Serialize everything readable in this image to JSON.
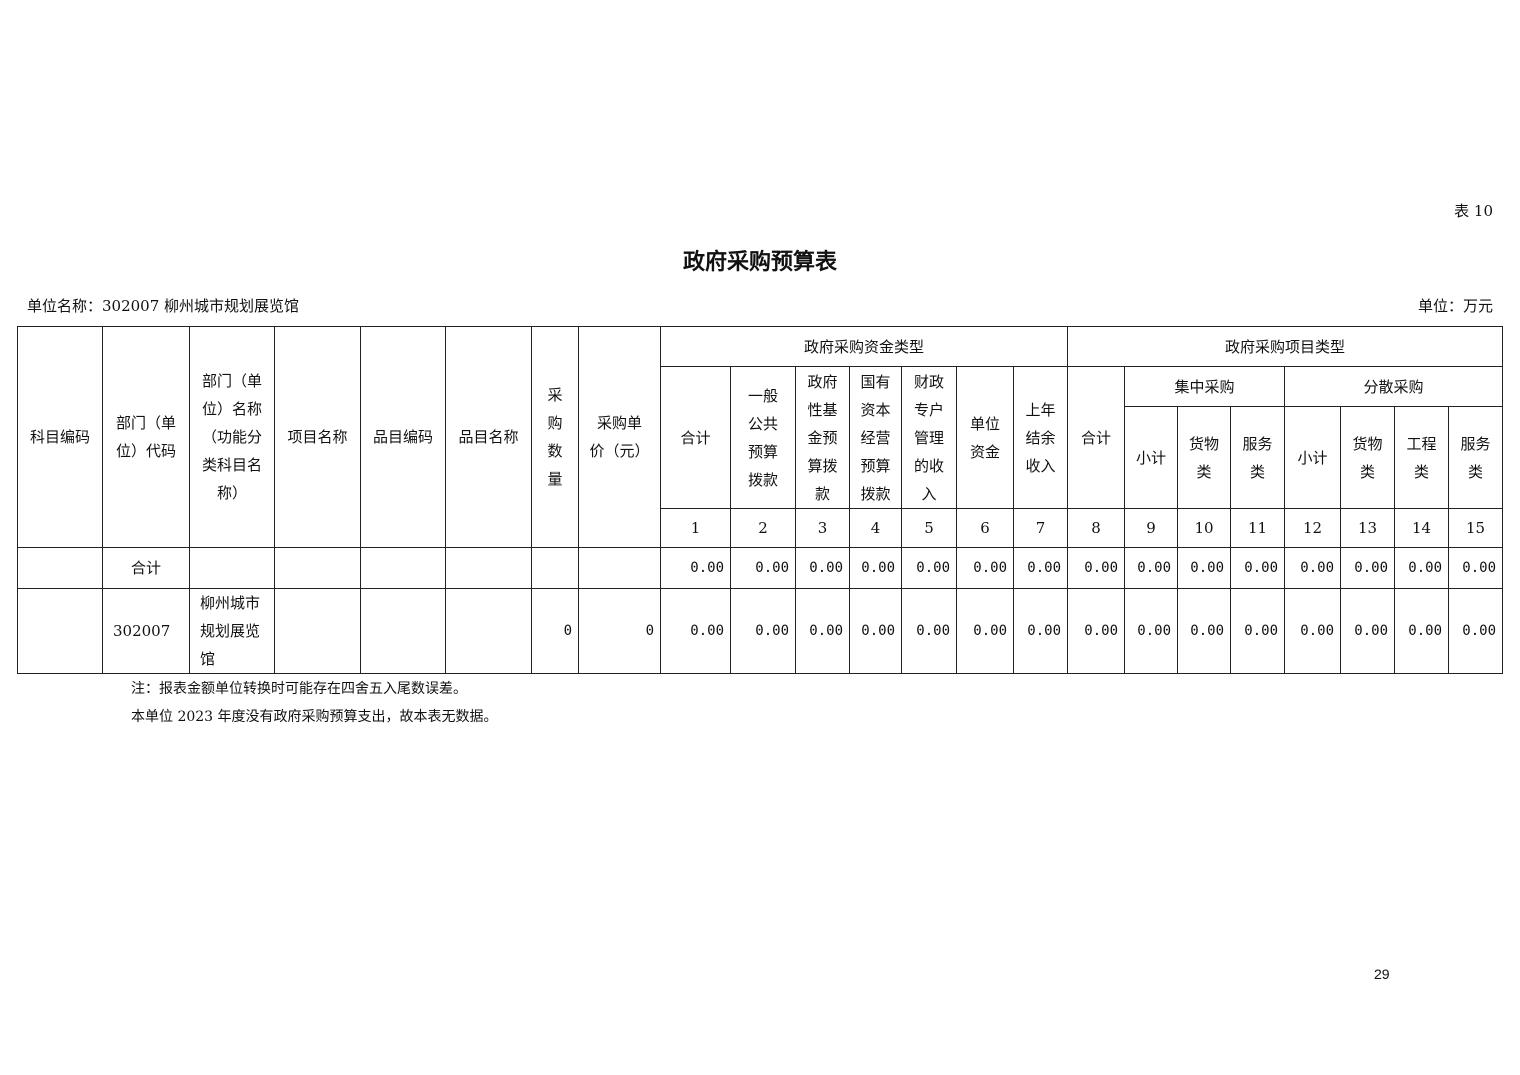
{
  "table_no": "表 10",
  "title": "政府采购预算表",
  "unit_name": "单位名称：302007 柳州城市规划展览馆",
  "unit": "单位：万元",
  "headers": {
    "left": [
      "科目编码",
      "部门（单\n位）代码",
      "部门（单\n位）名称\n（功能分\n类科目名\n称）",
      "项目名称",
      "品目编码",
      "品目名称",
      "采\n购\n数\n量",
      "采购单\n价（元）"
    ],
    "fund_type": "政府采购资金类型",
    "project_type": "政府采购项目类型",
    "fund_cols": [
      "合计",
      "一般\n公共\n预算\n拨款",
      "政府\n性基\n金预\n算拨\n款",
      "国有\n资本\n经营\n预算\n拨款",
      "财政\n专户\n管理\n的收\n入",
      "单位\n资金",
      "上年\n结余\n收入"
    ],
    "project_total": "合计",
    "centralized": "集中采购",
    "decentralized": "分散采购",
    "centralized_cols": [
      "小计",
      "货物\n类",
      "服务\n类"
    ],
    "decentralized_cols": [
      "小计",
      "货物\n类",
      "工程\n类",
      "服务\n类"
    ],
    "col_numbers": [
      "1",
      "2",
      "3",
      "4",
      "5",
      "6",
      "7",
      "8",
      "9",
      "10",
      "11",
      "12",
      "13",
      "14",
      "15"
    ]
  },
  "rows": [
    {
      "subject_code": "",
      "dept_code": "合计",
      "dept_name": "",
      "project": "",
      "item_code": "",
      "item_name": "",
      "qty": "",
      "price": "",
      "values": [
        "0.00",
        "0.00",
        "0.00",
        "0.00",
        "0.00",
        "0.00",
        "0.00",
        "0.00",
        "0.00",
        "0.00",
        "0.00",
        "0.00",
        "0.00",
        "0.00",
        "0.00"
      ]
    },
    {
      "subject_code": "",
      "dept_code": "302007",
      "dept_name": "柳州城市\n规划展览\n馆",
      "project": "",
      "item_code": "",
      "item_name": "",
      "qty": "0",
      "price": "0",
      "values": [
        "0.00",
        "0.00",
        "0.00",
        "0.00",
        "0.00",
        "0.00",
        "0.00",
        "0.00",
        "0.00",
        "0.00",
        "0.00",
        "0.00",
        "0.00",
        "0.00",
        "0.00"
      ]
    }
  ],
  "notes": [
    "注：报表金额单位转换时可能存在四舍五入尾数误差。",
    "本单位 2023 年度没有政府采购预算支出，故本表无数据。"
  ],
  "page_number": "29"
}
